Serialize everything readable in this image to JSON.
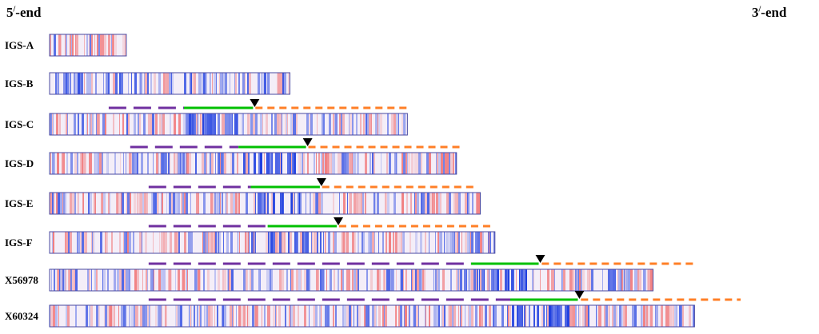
{
  "header": {
    "left_end": "5",
    "left_end_suffix": "-end",
    "right_end": "3",
    "right_end_suffix": "-end",
    "prime_mark": "/"
  },
  "colors": {
    "purple_dash": "#7030a0",
    "green_solid": "#00c000",
    "orange_dash": "#ff7f27",
    "marker": "#000000",
    "stripe_blue": "#1f3fe0",
    "stripe_red": "#f05a5a",
    "bar_border": "#4a4aa0"
  },
  "rows": [
    {
      "id": "IGS-A",
      "label": "IGS-A",
      "length": 0.1,
      "has_annotation": false
    },
    {
      "id": "IGS-B",
      "label": "IGS-B",
      "length": 0.313,
      "has_annotation": false
    },
    {
      "id": "IGS-C",
      "label": "IGS-C",
      "length": 0.466,
      "has_annotation": true,
      "purple_start": 0.077,
      "purple_end": 0.175,
      "green_start": 0.175,
      "green_end": 0.265,
      "orange_start": 0.268,
      "orange_end": 0.47,
      "blue_dense_start": 0.174,
      "blue_dense_end": 0.245
    },
    {
      "id": "IGS-D",
      "label": "IGS-D",
      "length": 0.53,
      "has_annotation": true,
      "purple_start": 0.105,
      "purple_end": 0.246,
      "green_start": 0.246,
      "green_end": 0.334,
      "orange_start": 0.337,
      "orange_end": 0.536,
      "blue_dense_start": 0.245,
      "blue_dense_end": 0.318
    },
    {
      "id": "IGS-E",
      "label": "IGS-E",
      "length": 0.561,
      "has_annotation": true,
      "purple_start": 0.129,
      "purple_end": 0.262,
      "green_start": 0.262,
      "green_end": 0.352,
      "orange_start": 0.355,
      "orange_end": 0.557,
      "blue_dense_start": 0.262,
      "blue_dense_end": 0.336
    },
    {
      "id": "IGS-F",
      "label": "IGS-F",
      "length": 0.58,
      "has_annotation": true,
      "purple_start": 0.129,
      "purple_end": 0.284,
      "green_start": 0.284,
      "green_end": 0.374,
      "orange_start": 0.377,
      "orange_end": 0.578,
      "blue_dense_start": 0.282,
      "blue_dense_end": 0.357
    },
    {
      "id": "X56978",
      "label": "X56978",
      "length": 0.786,
      "has_annotation": true,
      "purple_start": 0.129,
      "purple_end": 0.549,
      "green_start": 0.549,
      "green_end": 0.637,
      "orange_start": 0.641,
      "orange_end": 0.842,
      "blue_dense_start": 0.549,
      "blue_dense_end": 0.626
    },
    {
      "id": "X60324",
      "label": "X60324",
      "length": 0.84,
      "has_annotation": true,
      "purple_start": 0.129,
      "purple_end": 0.6,
      "green_start": 0.6,
      "green_end": 0.688,
      "orange_start": 0.692,
      "orange_end": 0.9,
      "blue_dense_start": 0.6,
      "blue_dense_end": 0.674
    }
  ]
}
